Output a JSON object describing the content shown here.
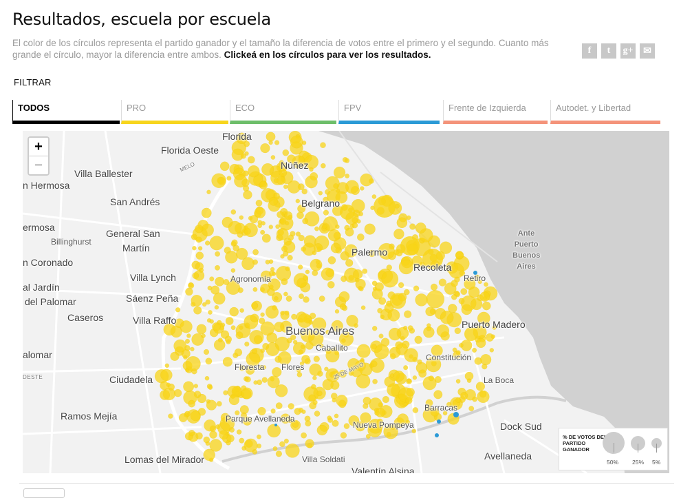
{
  "header": {
    "title": "Resultados, escuela por escuela",
    "description": "El color de los círculos representa el partido ganador y el tamaño la diferencia de votos entre el primero y el segundo. Cuanto más grande el círculo, mayor la diferencia entre ambos.",
    "cta": "Clickeá en los círculos para ver los resultados."
  },
  "share": [
    {
      "icon": "facebook-icon",
      "glyph": "f"
    },
    {
      "icon": "twitter-icon",
      "glyph": "t"
    },
    {
      "icon": "google-plus-icon",
      "glyph": "g+"
    },
    {
      "icon": "email-icon",
      "glyph": "✉"
    }
  ],
  "filter": {
    "label": "FILTRAR",
    "tabs": [
      {
        "id": "todos",
        "label": "TODOS",
        "color": "#000000",
        "active": true
      },
      {
        "id": "pro",
        "label": "PRO",
        "color": "#f7d51d",
        "active": false
      },
      {
        "id": "eco",
        "label": "ECO",
        "color": "#6dbe6a",
        "active": false
      },
      {
        "id": "fpv",
        "label": "FPV",
        "color": "#2b9ad6",
        "active": false
      },
      {
        "id": "fit",
        "label": "Frente de Izquierda",
        "color": "#f4937a",
        "active": false
      },
      {
        "id": "ayl",
        "label": "Autodet. y Libertad",
        "color": "#f4937a",
        "active": false
      }
    ]
  },
  "map": {
    "zoom_in": "+",
    "zoom_out": "−",
    "circle_color": "#f8d418",
    "fpv_color": "#2b9ad6",
    "place_labels": [
      "Florida",
      "Florida Oeste",
      "Núñez",
      "MELO",
      "Villa Ballester",
      "n Hermosa",
      "San Andrés",
      "Belgrano",
      "ermosa",
      "General San",
      "Martín",
      "Billinghurst",
      "Palermo",
      "Ante",
      "Puerto",
      "Buenos",
      "Aires",
      "n Coronado",
      "Villa Lynch",
      "Agronomía",
      "Recoleta",
      "Retiro",
      "al Jardín",
      "del Palomar",
      "Sáenz Peña",
      "Caseros",
      "Villa Raffo",
      "Puerto Madero",
      "Buenos Aires",
      "Caballito",
      "alomar",
      "Constitución",
      "Floresta",
      "Flores",
      "25 DE MAYO",
      "Ciudadela",
      "DESTE",
      "La Boca",
      "Barracas",
      "Ramos Mejía",
      "Parque Avellaneda",
      "Nueva Pompeya",
      "Dock Sud",
      "Lomas del Mirador",
      "Villa Soldati",
      "Avellaneda",
      "Valentín Alsina"
    ]
  },
  "legend": {
    "title": "% DE VOTOS DEL PARTIDO GANADOR",
    "items": [
      "50%",
      "25%",
      "5%"
    ]
  }
}
